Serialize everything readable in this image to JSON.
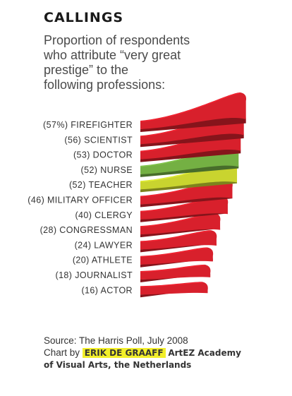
{
  "header": {
    "title": "CALLINGS",
    "subtitle_lines": [
      "Proportion of respondents",
      "who attribute “very great",
      "prestige” to the",
      "following professions:"
    ]
  },
  "chart_data": {
    "type": "bar",
    "title": "CALLINGS",
    "subtitle": "Proportion of respondents who attribute “very great prestige” to the following professions:",
    "categories": [
      "FIREFIGHTER",
      "SCIENTIST",
      "DOCTOR",
      "NURSE",
      "TEACHER",
      "MILITARY OFFICER",
      "CLERGY",
      "CONGRESSMAN",
      "LAWYER",
      "ATHLETE",
      "JOURNALIST",
      "ACTOR"
    ],
    "values": [
      57,
      56,
      53,
      52,
      52,
      46,
      40,
      28,
      24,
      20,
      18,
      16
    ],
    "value_labels": [
      "(57%)",
      "(56)",
      "(53)",
      "(52)",
      "(52)",
      "(46)",
      "(40)",
      "(28)",
      "(24)",
      "(20)",
      "(18)",
      "(16)"
    ],
    "colors": [
      "#d8202c",
      "#d8202c",
      "#d8202c",
      "#74b043",
      "#c9d42f",
      "#d8202c",
      "#d8202c",
      "#d8202c",
      "#d8202c",
      "#d8202c",
      "#d8202c",
      "#d8202c"
    ],
    "unit": "%"
  },
  "footer": {
    "source": "Source: The Harris Poll, July 2008",
    "credit_prefix": "Chart by",
    "author": "ERIK DE GRAAFF",
    "institution_part1": "ArtEZ Academy",
    "institution_part2": "of Visual Arts, the Netherlands",
    "highlight_color": "#f2ef2a"
  }
}
